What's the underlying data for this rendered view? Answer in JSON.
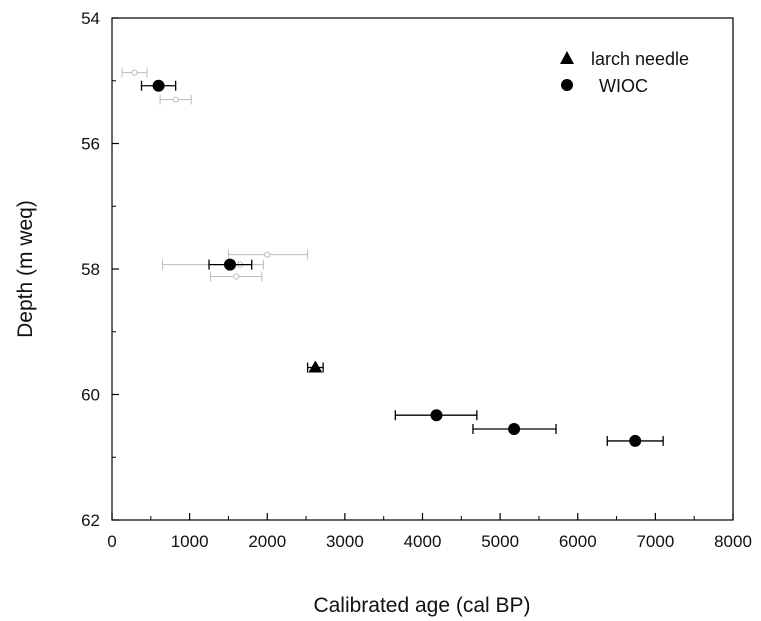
{
  "chart_data": {
    "type": "scatter",
    "xlabel": "Calibrated age (cal BP)",
    "ylabel": "Depth (m weq)",
    "xlim": [
      0,
      8000
    ],
    "ylim": [
      54,
      62
    ],
    "y_inverted": true,
    "x_ticks": [
      0,
      1000,
      2000,
      3000,
      4000,
      5000,
      6000,
      7000,
      8000
    ],
    "y_ticks": [
      54,
      56,
      58,
      60,
      62
    ],
    "grid": false,
    "legend_position": "top-right",
    "series": [
      {
        "name": "larch needle",
        "marker": "triangle",
        "color": "#000000",
        "points": [
          {
            "x": 2620,
            "y": 59.57,
            "xerr_low": 2520,
            "xerr_high": 2720
          }
        ]
      },
      {
        "name": "WIOC",
        "marker": "circle",
        "color": "#000000",
        "points": [
          {
            "x": 600,
            "y": 55.08,
            "xerr_low": 380,
            "xerr_high": 820
          },
          {
            "x": 1520,
            "y": 57.93,
            "xerr_low": 1250,
            "xerr_high": 1800
          },
          {
            "x": 4180,
            "y": 60.33,
            "xerr_low": 3650,
            "xerr_high": 4700
          },
          {
            "x": 5180,
            "y": 60.55,
            "xerr_low": 4650,
            "xerr_high": 5720
          },
          {
            "x": 6740,
            "y": 60.74,
            "xerr_low": 6380,
            "xerr_high": 7100
          }
        ]
      },
      {
        "marker": "open-circle",
        "color": "#bdbdbd",
        "points": [
          {
            "x": 290,
            "y": 54.87,
            "xerr_low": 130,
            "xerr_high": 450
          },
          {
            "x": 820,
            "y": 55.3,
            "xerr_low": 620,
            "xerr_high": 1020
          },
          {
            "x": 2000,
            "y": 57.77,
            "xerr_low": 1500,
            "xerr_high": 2520
          },
          {
            "x": 1600,
            "y": 58.12,
            "xerr_low": 1270,
            "xerr_high": 1930
          },
          {
            "x": 1650,
            "y": 57.93,
            "xerr_low": 650,
            "xerr_high": 1950
          }
        ]
      }
    ]
  }
}
